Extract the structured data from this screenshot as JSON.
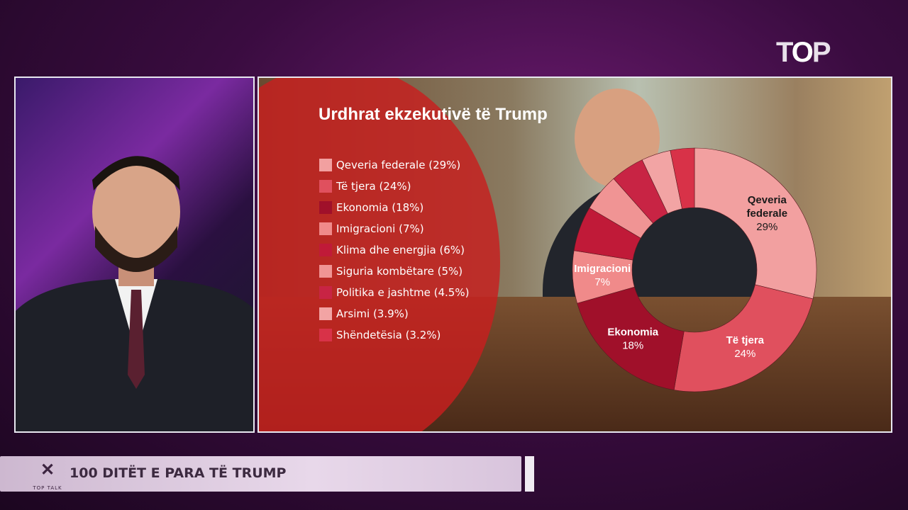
{
  "channel_logo": "TOP",
  "lower_third": {
    "show_logo": "TOP TALK",
    "headline": "100 DITËT E PARA TË TRUMP"
  },
  "chart_data": {
    "type": "pie",
    "donut": true,
    "title": "Urdhrat ekzekutivë të Trump",
    "legend_position": "left",
    "categories": [
      "Qeveria federale",
      "Të tjera",
      "Ekonomia",
      "Imigracioni",
      "Klima dhe energjia",
      "Siguria kombëtare",
      "Politika e jashtme",
      "Arsimi",
      "Shëndetësia"
    ],
    "legend_labels": [
      "Qeveria federale (29%)",
      "Të tjera (24%)",
      "Ekonomia (18%)",
      "Imigracioni (7%)",
      "Klima dhe energjia (6%)",
      "Siguria kombëtare (5%)",
      "Politika e jashtme (4.5%)",
      "Arsimi (3.9%)",
      "Shëndetësia (3.2%)"
    ],
    "values": [
      29,
      24,
      18,
      7,
      6,
      5,
      4.5,
      3.9,
      3.2
    ],
    "colors": [
      "#f2a0a0",
      "#e0505e",
      "#a0102a",
      "#f08a8a",
      "#c01a38",
      "#f09494",
      "#c82444",
      "#f2a4a4",
      "#d83248"
    ],
    "slice_labels": [
      {
        "lines": [
          "Qeveria",
          "federale",
          "29%"
        ],
        "color": "#1a1a1a"
      },
      {
        "lines": [
          "Të tjera",
          "24%"
        ],
        "color": "#ffffff"
      },
      {
        "lines": [
          "Ekonomia",
          "18%"
        ],
        "color": "#ffffff"
      },
      {
        "lines": [
          "Imigracioni",
          "7%"
        ],
        "color": "#ffffff"
      }
    ]
  }
}
